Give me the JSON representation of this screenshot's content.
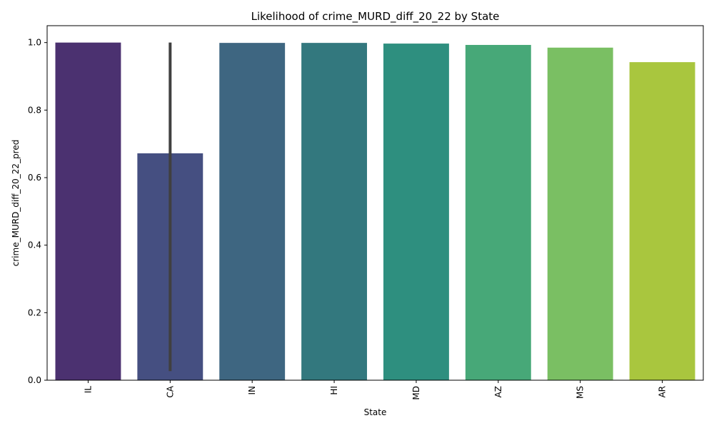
{
  "chart_data": {
    "type": "bar",
    "title": "Likelihood of crime_MURD_diff_20_22 by State",
    "xlabel": "State",
    "ylabel": "crime_MURD_diff_20_22_pred",
    "categories": [
      "IL",
      "CA",
      "IN",
      "HI",
      "MD",
      "AZ",
      "MS",
      "AR"
    ],
    "values": [
      1.0,
      0.672,
      0.999,
      0.999,
      0.997,
      0.993,
      0.985,
      0.942
    ],
    "error_bars": [
      null,
      [
        0.027,
        1.0
      ],
      null,
      null,
      null,
      null,
      null,
      null
    ],
    "ylim": [
      0,
      1.05
    ],
    "yticks": [
      0.0,
      0.2,
      0.4,
      0.6,
      0.8,
      1.0
    ],
    "ytick_labels": [
      "0.0",
      "0.2",
      "0.4",
      "0.6",
      "0.8",
      "1.0"
    ],
    "grid": false,
    "colors": [
      "#4b3170",
      "#454f81",
      "#3e6681",
      "#33787e",
      "#2e8f7f",
      "#47a878",
      "#7abf63",
      "#a9c63e"
    ],
    "error_color": "#404040"
  }
}
